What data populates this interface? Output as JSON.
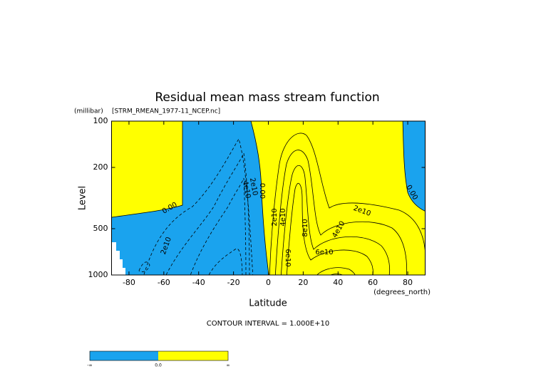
{
  "chart_data": {
    "type": "contour",
    "title": "Residual mean mass stream function",
    "dataset": "[STRM_RMEAN_1977-11_NCEP.nc]",
    "y_units": "(millibar)",
    "y_label": "Level",
    "x_label": "Latitude",
    "x_units": "(degrees_north)",
    "contour_interval_note": "CONTOUR INTERVAL = 1.000E+10",
    "xlim": [
      -90,
      90
    ],
    "xticks": [
      -80,
      -60,
      -40,
      -20,
      0,
      20,
      40,
      60,
      80
    ],
    "ylim": [
      1000,
      100
    ],
    "yticks": [
      100,
      200,
      500,
      1000
    ],
    "y_log": true,
    "colors": [
      "#1aa3ee",
      "#ffff00"
    ],
    "contour_labels": [
      "0.00",
      "0.00",
      "0.00",
      "2e10",
      "4e10",
      "2e10",
      "2e10",
      "4e10",
      "8e10",
      "6e10",
      "2e10",
      "4e10",
      "6e10"
    ],
    "colorbar_labels": [
      "-∞",
      "0.0",
      "∞"
    ]
  }
}
